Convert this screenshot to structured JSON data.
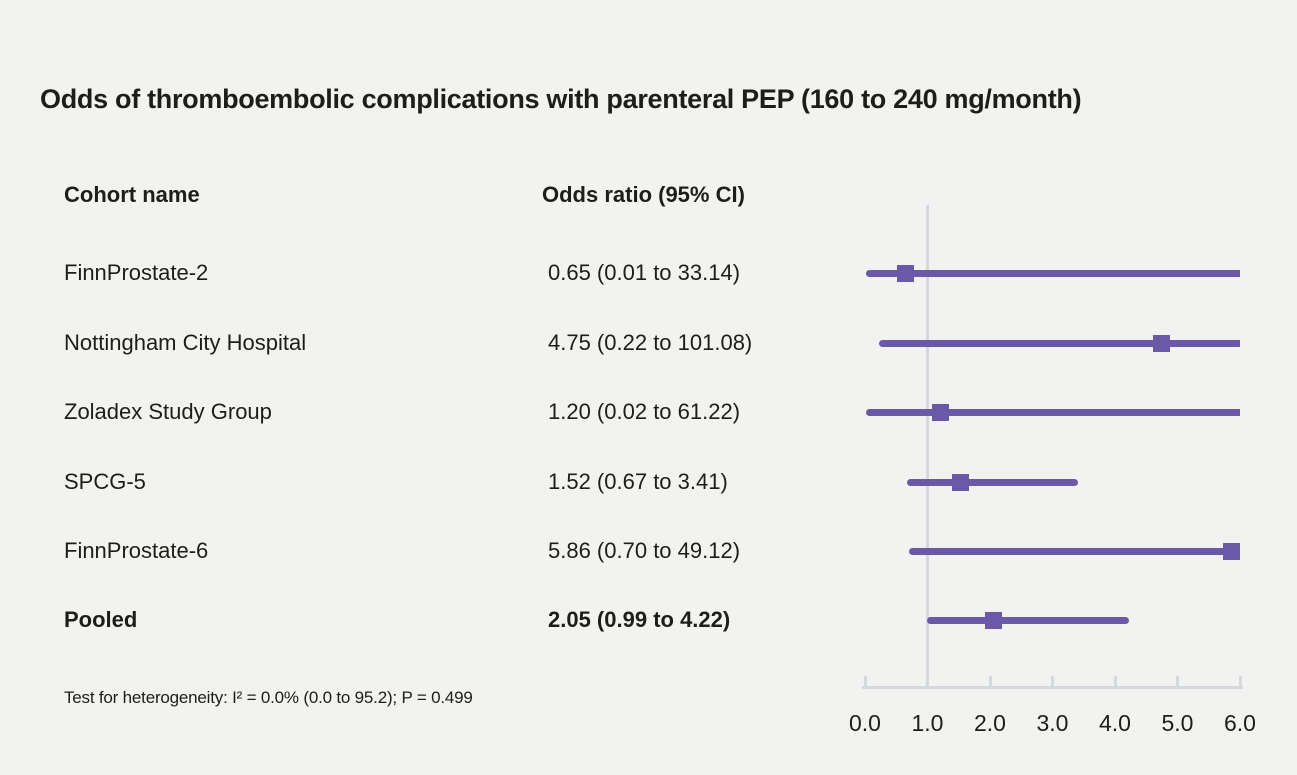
{
  "title": "Odds of thromboembolic complications with parenteral PEP (160 to 240 mg/month)",
  "columns": {
    "cohort": "Cohort name",
    "odds": "Odds ratio (95% CI)"
  },
  "footnote": "Test for heterogeneity: I² = 0.0% (0.0 to 95.2); P = 0.499",
  "colors": {
    "background": "#f2f2f1",
    "text": "#1d1d1b",
    "marker_purple": "#6a59a6",
    "axis_line": "#d5d9de"
  },
  "chart_data": {
    "type": "scatter",
    "subtype": "forest-plot",
    "title": "Odds of thromboembolic complications with parenteral PEP (160 to 240 mg/month)",
    "xlabel": "",
    "ylabel": "",
    "xlim": [
      0,
      6
    ],
    "x_ticks": [
      0,
      1,
      2,
      3,
      4,
      5,
      6
    ],
    "tick_labels": [
      "0.0",
      "1.0",
      "2.0",
      "3.0",
      "4.0",
      "5.0",
      "6.0"
    ],
    "reference_line_x": 1.0,
    "grid": false,
    "legend": "none",
    "rows": [
      {
        "cohort": "FinnProstate-2",
        "or": 0.65,
        "ci_low": 0.01,
        "ci_high": 33.14,
        "label": "0.65 (0.01 to 33.14)",
        "pooled": false
      },
      {
        "cohort": "Nottingham City Hospital",
        "or": 4.75,
        "ci_low": 0.22,
        "ci_high": 101.08,
        "label": "4.75 (0.22 to 101.08)",
        "pooled": false
      },
      {
        "cohort": "Zoladex Study Group",
        "or": 1.2,
        "ci_low": 0.02,
        "ci_high": 61.22,
        "label": "1.20 (0.02 to 61.22)",
        "pooled": false
      },
      {
        "cohort": "SPCG-5",
        "or": 1.52,
        "ci_low": 0.67,
        "ci_high": 3.41,
        "label": "1.52 (0.67 to 3.41)",
        "pooled": false
      },
      {
        "cohort": "FinnProstate-6",
        "or": 5.86,
        "ci_low": 0.7,
        "ci_high": 49.12,
        "label": "5.86 (0.70 to 49.12)",
        "pooled": false
      },
      {
        "cohort": "Pooled",
        "or": 2.05,
        "ci_low": 0.99,
        "ci_high": 4.22,
        "label": "2.05 (0.99 to 4.22)",
        "pooled": true
      }
    ]
  }
}
